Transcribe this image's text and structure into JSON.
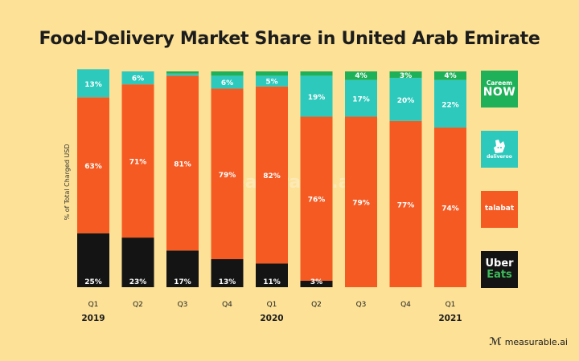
{
  "title": "Food-Delivery Market Share in United Arab Emirate",
  "ylabel": "% of Total Charged USD",
  "watermark": "measurable.ai",
  "brand": "measurable.ai",
  "legend": {
    "careem_top": "Careem",
    "careem_bottom": "NOW",
    "deliveroo": "deliveroo",
    "talabat": "talabat",
    "uber_top": "Uber",
    "uber_bottom": "Eats"
  },
  "colors": {
    "background": "#FCE196",
    "careem": "#1FB15A",
    "deliveroo": "#2DC9BC",
    "talabat": "#F45A22",
    "uber": "#141414"
  },
  "chart_data": {
    "type": "bar",
    "stacked": true,
    "categories": [
      "Q1",
      "Q2",
      "Q3",
      "Q4",
      "Q1",
      "Q2",
      "Q3",
      "Q4",
      "Q1"
    ],
    "years": [
      {
        "label": "2019",
        "index": 0
      },
      {
        "label": "2020",
        "index": 4
      },
      {
        "label": "2021",
        "index": 8
      }
    ],
    "ylabel": "% of Total Charged USD",
    "ylim": [
      0,
      100
    ],
    "series": [
      {
        "key": "uber",
        "values": [
          25,
          23,
          17,
          13,
          11,
          3,
          0,
          0,
          0
        ],
        "labels": [
          "25%",
          "23%",
          "17%",
          "13%",
          "11%",
          "3%",
          "",
          "",
          ""
        ]
      },
      {
        "key": "talabat",
        "values": [
          63,
          71,
          81,
          79,
          82,
          76,
          79,
          77,
          74
        ],
        "labels": [
          "63%",
          "71%",
          "81%",
          "79%",
          "82%",
          "76%",
          "79%",
          "77%",
          "74%"
        ]
      },
      {
        "key": "deliveroo",
        "values": [
          13,
          6,
          1,
          6,
          5,
          19,
          17,
          20,
          22
        ],
        "labels": [
          "13%",
          "6%",
          "",
          "6%",
          "5%",
          "19%",
          "17%",
          "20%",
          "22%"
        ]
      },
      {
        "key": "careem",
        "values": [
          0,
          0,
          0,
          1,
          1,
          1,
          4,
          3,
          4
        ],
        "labels": [
          "",
          "",
          "",
          "",
          "",
          "",
          "4%",
          "3%",
          "4%"
        ]
      }
    ]
  }
}
